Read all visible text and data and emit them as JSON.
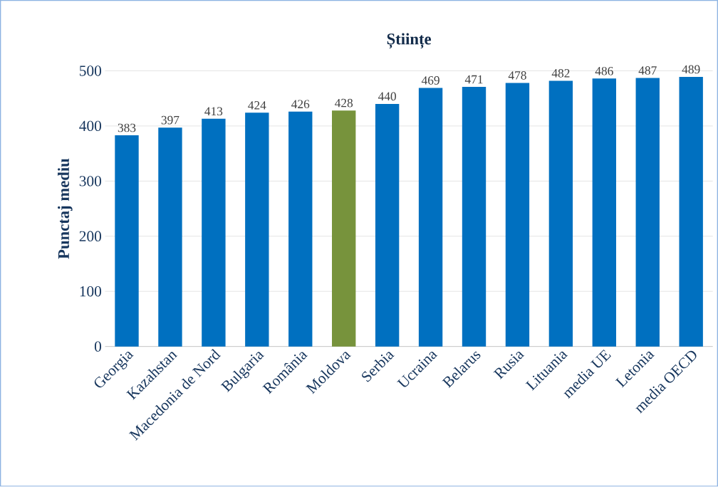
{
  "chart_data": {
    "type": "bar",
    "title": "Științe",
    "ylabel": "Punctaj mediu",
    "categories": [
      "Georgia",
      "Kazahstan",
      "Macedonia de Nord",
      "Bulgaria",
      "România",
      "Moldova",
      "Serbia",
      "Ucraina",
      "Belarus",
      "Rusia",
      "Lituania",
      "media UE",
      "Letonia",
      "media OECD"
    ],
    "values": [
      383,
      397,
      413,
      424,
      426,
      428,
      440,
      469,
      471,
      478,
      482,
      486,
      487,
      489
    ],
    "colors": [
      "#0070c0",
      "#0070c0",
      "#0070c0",
      "#0070c0",
      "#0070c0",
      "#77933c",
      "#0070c0",
      "#0070c0",
      "#0070c0",
      "#0070c0",
      "#0070c0",
      "#0070c0",
      "#0070c0",
      "#0070c0"
    ],
    "ylim": [
      0,
      500
    ],
    "yticks": [
      0,
      100,
      200,
      300,
      400,
      500
    ],
    "grid": "y",
    "data_labels": true
  }
}
